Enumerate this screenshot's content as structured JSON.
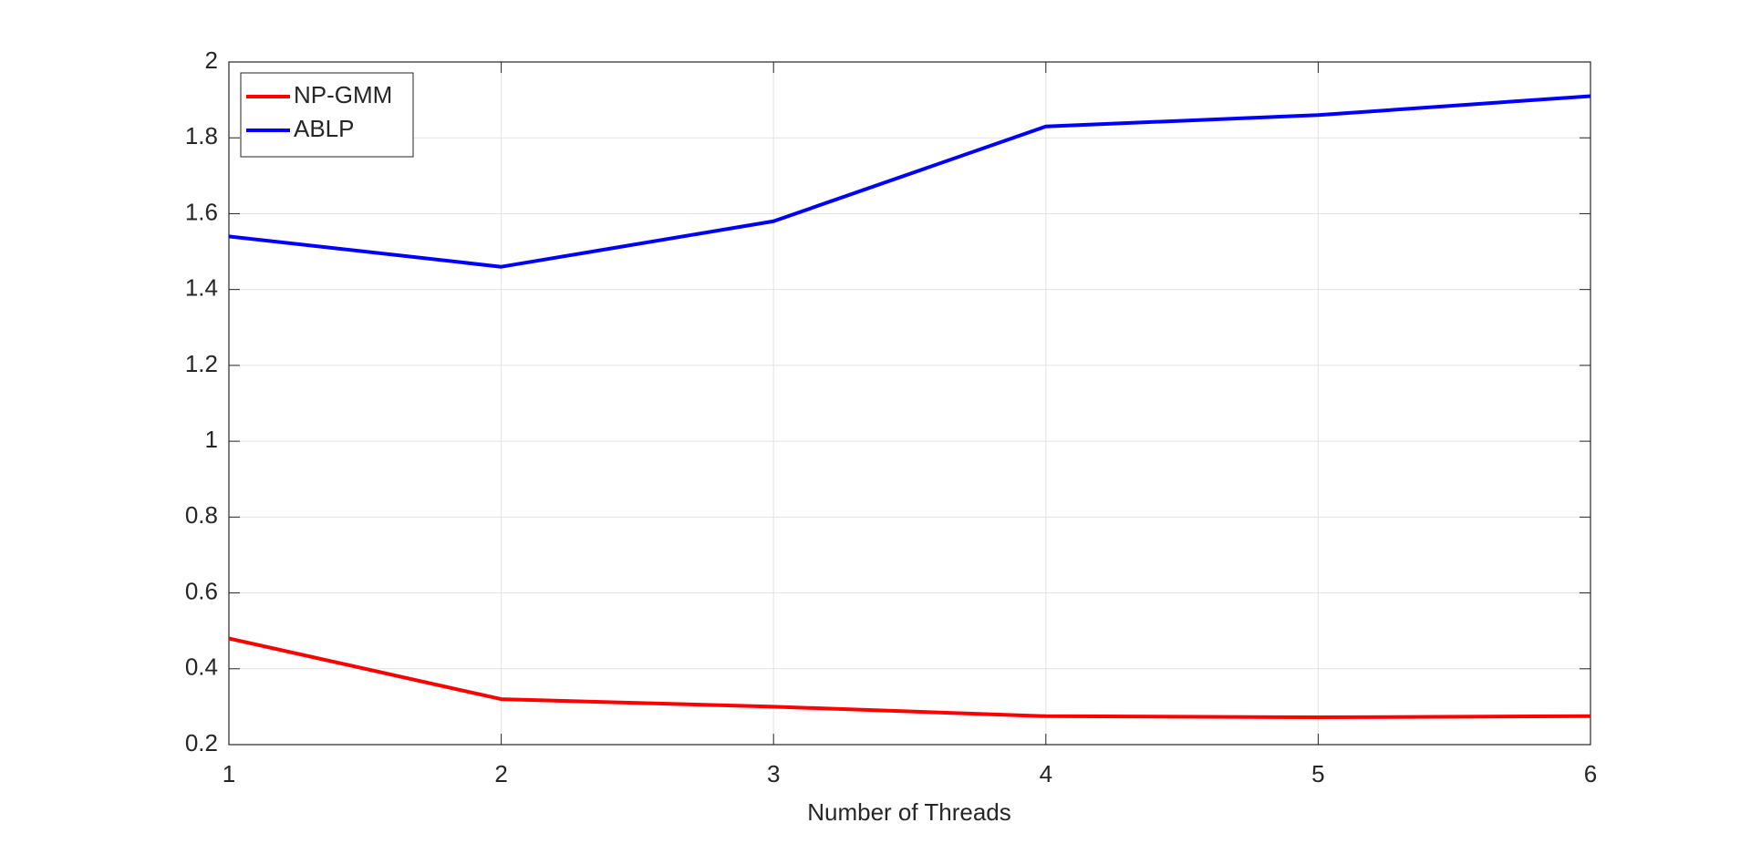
{
  "chart_data": {
    "type": "line",
    "x_label": "Number of Threads",
    "x": [
      1,
      2,
      3,
      4,
      5,
      6
    ],
    "series": [
      {
        "name": "NP-GMM",
        "color": "#ff0000",
        "values": [
          0.48,
          0.32,
          0.3,
          0.275,
          0.272,
          0.275
        ]
      },
      {
        "name": "ABLP",
        "color": "#0000ff",
        "values": [
          1.54,
          1.46,
          1.58,
          1.83,
          1.86,
          1.91
        ]
      }
    ],
    "xlim": [
      1,
      6
    ],
    "xticks": [
      1,
      2,
      3,
      4,
      5,
      6
    ],
    "ylim": [
      0.2,
      2
    ],
    "yticks": [
      0.2,
      0.4,
      0.6,
      0.8,
      1,
      1.2,
      1.4,
      1.6,
      1.8,
      2
    ],
    "grid": true,
    "legend": "upper left"
  }
}
